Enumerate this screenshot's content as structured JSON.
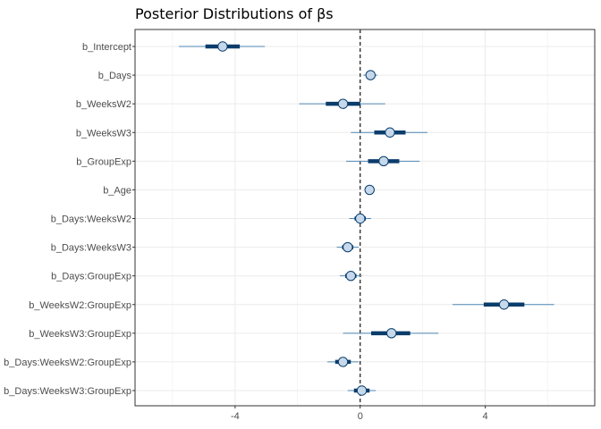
{
  "chart_data": {
    "type": "interval",
    "title": "Posterior Distributions of βs",
    "xlabel": "",
    "ylabel": "",
    "xlim": [
      -7.2,
      7.5
    ],
    "x_ticks": [
      -4,
      0,
      4
    ],
    "x_tick_labels": [
      "-4",
      "0",
      "4"
    ],
    "reference_line": 0,
    "grid": true,
    "colors": {
      "outer_interval": "#4f86b3",
      "inner_interval": "#0b3d6b",
      "point_fill": "#c6d9ec",
      "point_stroke": "#0b3d6b",
      "grid": "#ebebeb",
      "border": "#333333"
    },
    "parameters": [
      {
        "name": "b_Intercept",
        "estimate": -4.4,
        "inner": [
          -4.95,
          -3.85
        ],
        "outer": [
          -5.8,
          -3.05
        ]
      },
      {
        "name": "b_Days",
        "estimate": 0.33,
        "inner": [
          0.22,
          0.44
        ],
        "outer": [
          0.1,
          0.55
        ]
      },
      {
        "name": "b_WeeksW2",
        "estimate": -0.55,
        "inner": [
          -1.1,
          0.0
        ],
        "outer": [
          -1.95,
          0.8
        ]
      },
      {
        "name": "b_WeeksW3",
        "estimate": 0.95,
        "inner": [
          0.45,
          1.45
        ],
        "outer": [
          -0.3,
          2.15
        ]
      },
      {
        "name": "b_GroupExp",
        "estimate": 0.75,
        "inner": [
          0.25,
          1.25
        ],
        "outer": [
          -0.45,
          1.9
        ]
      },
      {
        "name": "b_Age",
        "estimate": 0.3,
        "inner": [
          0.22,
          0.38
        ],
        "outer": [
          0.15,
          0.45
        ]
      },
      {
        "name": "b_Days:WeeksW2",
        "estimate": 0.0,
        "inner": [
          -0.18,
          0.18
        ],
        "outer": [
          -0.35,
          0.35
        ]
      },
      {
        "name": "b_Days:WeeksW3",
        "estimate": -0.4,
        "inner": [
          -0.58,
          -0.22
        ],
        "outer": [
          -0.75,
          -0.05
        ]
      },
      {
        "name": "b_Days:GroupExp",
        "estimate": -0.3,
        "inner": [
          -0.48,
          -0.12
        ],
        "outer": [
          -0.65,
          0.05
        ]
      },
      {
        "name": "b_WeeksW2:GroupExp",
        "estimate": 4.6,
        "inner": [
          3.95,
          5.25
        ],
        "outer": [
          2.95,
          6.2
        ]
      },
      {
        "name": "b_WeeksW3:GroupExp",
        "estimate": 1.0,
        "inner": [
          0.35,
          1.6
        ],
        "outer": [
          -0.55,
          2.5
        ]
      },
      {
        "name": "b_Days:WeeksW2:GroupExp",
        "estimate": -0.55,
        "inner": [
          -0.8,
          -0.3
        ],
        "outer": [
          -1.05,
          -0.05
        ]
      },
      {
        "name": "b_Days:WeeksW3:GroupExp",
        "estimate": 0.05,
        "inner": [
          -0.2,
          0.3
        ],
        "outer": [
          -0.4,
          0.5
        ]
      }
    ]
  }
}
